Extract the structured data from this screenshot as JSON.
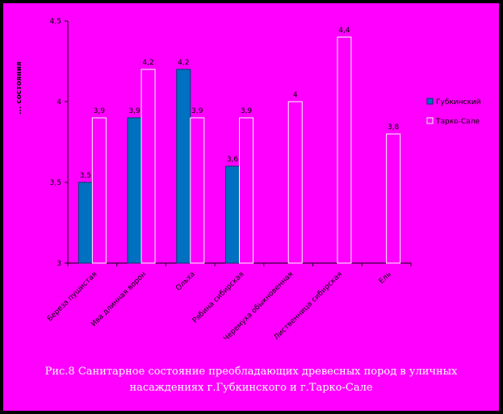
{
  "chart_data": {
    "type": "bar",
    "ylabel": "... состояния",
    "ylim": [
      3,
      4.5
    ],
    "yticks": [
      "3",
      "3,5",
      "4",
      "4,5"
    ],
    "categories": [
      "Береза пушистая",
      "Ива длинная ворон",
      "Ольха",
      "Рябина сибирская",
      "Черемуха обыкновенная",
      "Лиственница сибирская",
      "Ель"
    ],
    "series": [
      {
        "name": "Губкинский",
        "color": "#0070c0",
        "values": [
          3.5,
          3.9,
          4.2,
          3.6,
          null,
          null,
          null
        ],
        "labels": [
          "3,5",
          "3,9",
          "4,2",
          "3,6",
          "",
          "",
          ""
        ]
      },
      {
        "name": "Тарко-Сале",
        "color": "#ff00ff",
        "values": [
          3.9,
          4.2,
          3.9,
          3.9,
          4.0,
          4.4,
          3.8
        ],
        "labels": [
          "3,9",
          "4,2",
          "3,9",
          "3,9",
          "4",
          "4,4",
          "3,8"
        ]
      }
    ],
    "legend_position": "right",
    "grid": false
  },
  "caption": {
    "line1": "Рис.8 Санитарное состояние преобладающих древесных пород в уличных",
    "line2": "насаждениях г.Губкинского и г.Тарко-Сале"
  }
}
